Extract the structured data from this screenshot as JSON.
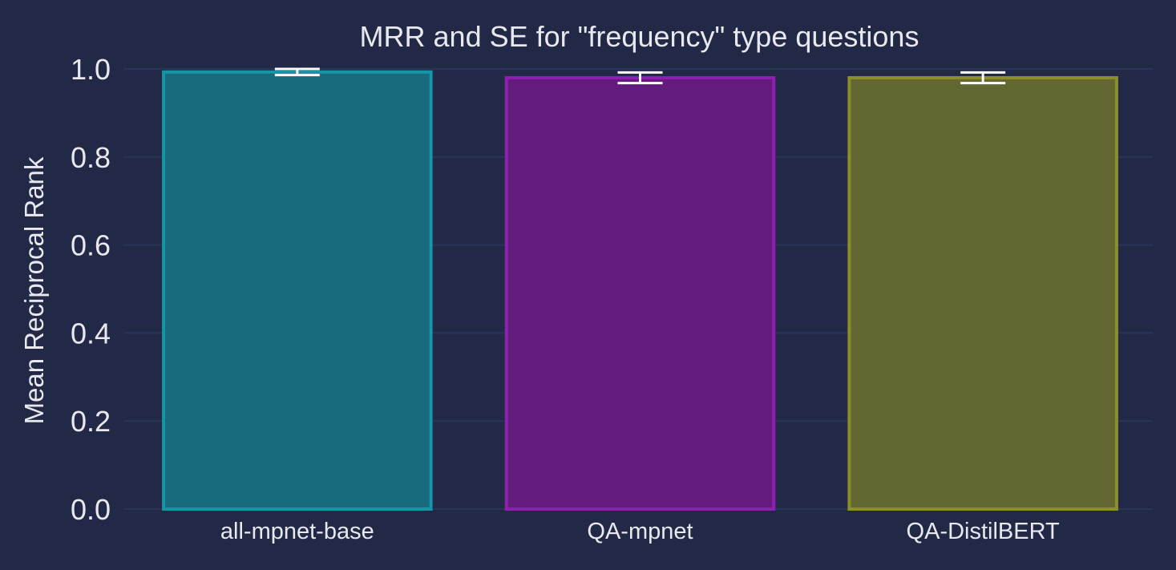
{
  "theme": {
    "background": "#212946",
    "grid": "#2A3459",
    "text": "#e8e8ee",
    "errorbar": "#ffffff"
  },
  "chart_data": {
    "type": "bar",
    "title": "MRR and SE for \"frequency\" type questions",
    "xlabel": "",
    "ylabel": "Mean Reciprocal Rank",
    "ylim": [
      0,
      1.0
    ],
    "yticks": [
      0.0,
      0.2,
      0.4,
      0.6,
      0.8,
      1.0
    ],
    "ytick_labels": [
      "0.0",
      "0.2",
      "0.4",
      "0.6",
      "0.8",
      "1.0"
    ],
    "grid": true,
    "categories": [
      "all-mpnet-base",
      "QA-mpnet",
      "QA-DistilBERT"
    ],
    "values": [
      0.993,
      0.98,
      0.98
    ],
    "errors": [
      0.007,
      0.012,
      0.012
    ],
    "colors": [
      {
        "fill": "#186B7D",
        "edge": "#1595A6"
      },
      {
        "fill": "#631C7E",
        "edge": "#8E1FB0"
      },
      {
        "fill": "#636832",
        "edge": "#8C8F27"
      }
    ]
  }
}
